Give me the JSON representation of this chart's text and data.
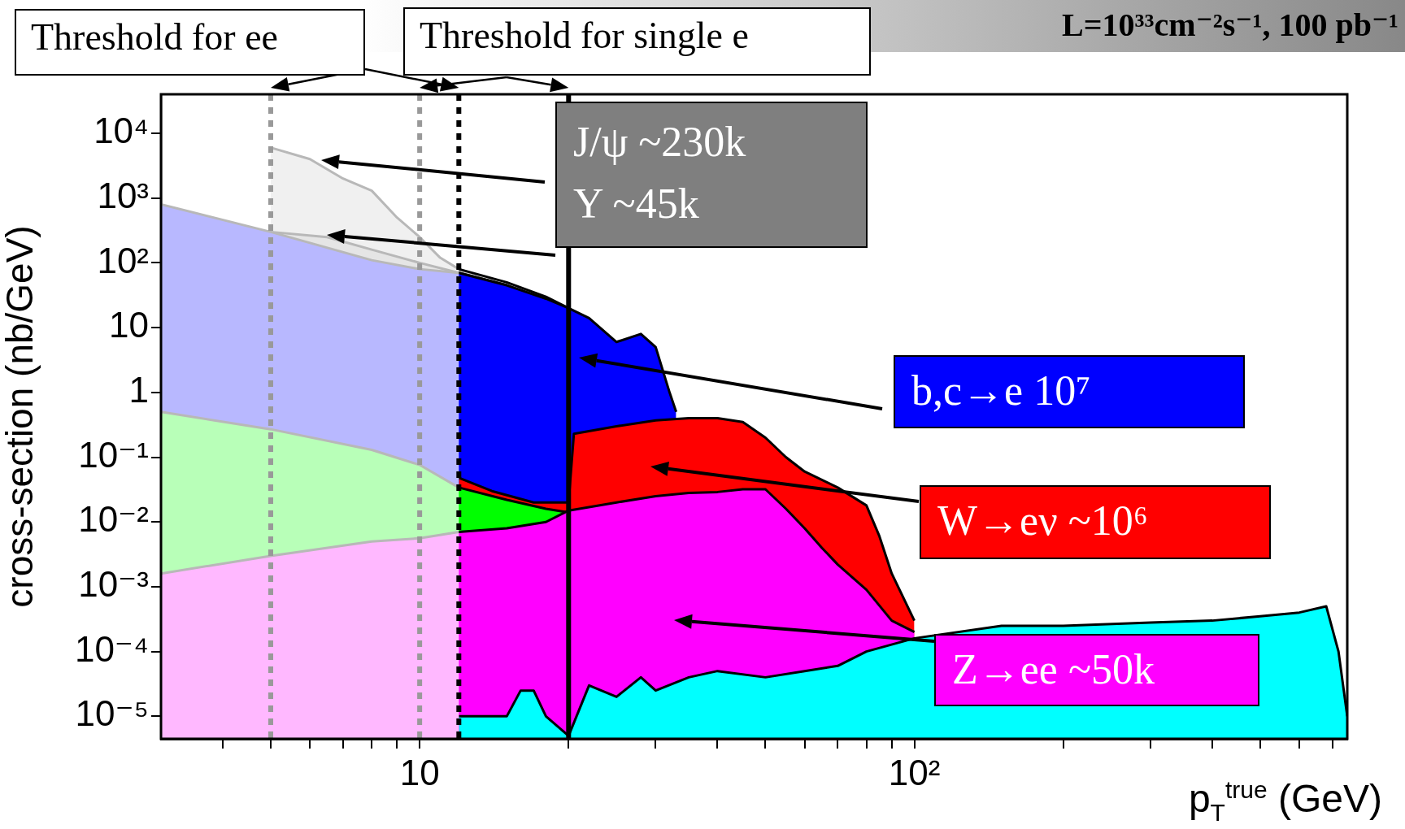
{
  "chart_data": {
    "type": "area",
    "title": "L=10³³cm⁻²s⁻¹, 100 pb⁻¹",
    "xlabel": "p$_{T}$$^{true}$ (GeV)",
    "ylabel": "cross-section (nb/GeV)",
    "log": "xy",
    "grid": false,
    "xlim": [
      3,
      750
    ],
    "ylim": [
      4.5e-06,
      40000
    ],
    "xticks": [
      {
        "value": 4,
        "label": null
      },
      {
        "value": 5,
        "label": null
      },
      {
        "value": 6,
        "label": null
      },
      {
        "value": 7,
        "label": null
      },
      {
        "value": 8,
        "label": null
      },
      {
        "value": 9,
        "label": null
      },
      {
        "value": 10,
        "label": "10"
      },
      {
        "value": 20,
        "label": null
      },
      {
        "value": 30,
        "label": null
      },
      {
        "value": 40,
        "label": null
      },
      {
        "value": 50,
        "label": null
      },
      {
        "value": 60,
        "label": null
      },
      {
        "value": 70,
        "label": null
      },
      {
        "value": 80,
        "label": null
      },
      {
        "value": 90,
        "label": null
      },
      {
        "value": 100,
        "label": "10²"
      },
      {
        "value": 200,
        "label": null
      },
      {
        "value": 300,
        "label": null
      },
      {
        "value": 400,
        "label": null
      },
      {
        "value": 500,
        "label": null
      },
      {
        "value": 600,
        "label": null
      },
      {
        "value": 700,
        "label": null
      }
    ],
    "yticks": [
      {
        "value": 1e-05,
        "label": "10⁻⁵"
      },
      {
        "value": 0.0001,
        "label": "10⁻⁴"
      },
      {
        "value": 0.001,
        "label": "10⁻³"
      },
      {
        "value": 0.01,
        "label": "10⁻²"
      },
      {
        "value": 0.1,
        "label": "10⁻¹"
      },
      1,
      10,
      {
        "value": 100,
        "label": "10²"
      },
      {
        "value": 1000,
        "label": "10³"
      },
      {
        "value": 10000,
        "label": "10⁴"
      }
    ],
    "series": [
      {
        "name": "J/ψ ~230k",
        "color": "#c8c8c8",
        "x": [
          5,
          6,
          7,
          8,
          9,
          10,
          11,
          12,
          15,
          18,
          20
        ],
        "values": [
          6000,
          4000,
          2000,
          1300,
          500,
          250,
          120,
          80,
          50,
          30,
          20
        ]
      },
      {
        "name": "Υ ~45k",
        "color": "#a0a0a0",
        "x": [
          5,
          6.5,
          8,
          10,
          12,
          15,
          20
        ],
        "values": [
          300,
          250,
          160,
          100,
          70,
          45,
          20
        ]
      },
      {
        "name": "b,c→e 10⁷",
        "color": "#0000ff",
        "x": [
          3,
          5,
          8,
          10,
          12,
          15,
          18,
          20,
          22,
          25,
          28,
          30,
          32,
          33
        ],
        "values": [
          800,
          300,
          110,
          80,
          70,
          45,
          28,
          20,
          14,
          6,
          8,
          5,
          1,
          0.5
        ]
      },
      {
        "name": "W→eν ~10⁶",
        "color": "#ff0000",
        "x": [
          12,
          14,
          17,
          20,
          20.5,
          25,
          30,
          35,
          40,
          45,
          50,
          55,
          60,
          70,
          80,
          85,
          90,
          100
        ],
        "values": [
          0.048,
          0.03,
          0.02,
          0.02,
          0.23,
          0.3,
          0.37,
          0.4,
          0.4,
          0.35,
          0.2,
          0.1,
          0.06,
          0.034,
          0.018,
          0.006,
          0.0016,
          0.0003
        ]
      },
      {
        "color": "#00ff00",
        "x": [
          3,
          5,
          8,
          10,
          12,
          15,
          18,
          20
        ],
        "values": [
          0.5,
          0.27,
          0.13,
          0.076,
          0.034,
          0.022,
          0.016,
          0.014
        ]
      },
      {
        "name": "Z→ee ~50k",
        "color": "#ff00ff",
        "x": [
          3,
          5,
          8,
          10,
          12,
          15,
          18,
          20,
          25,
          30,
          35,
          40,
          45,
          50,
          55,
          60,
          65,
          70,
          80,
          90,
          100
        ],
        "values": [
          0.0016,
          0.003,
          0.005,
          0.0056,
          0.007,
          0.008,
          0.01,
          0.015,
          0.02,
          0.025,
          0.028,
          0.029,
          0.032,
          0.032,
          0.016,
          0.008,
          0.004,
          0.0022,
          0.0009,
          0.0003,
          0.0002
        ]
      },
      {
        "color": "#00ffff",
        "x": [
          12,
          15,
          16,
          17,
          18,
          20,
          22,
          25,
          28,
          30,
          35,
          40,
          50,
          60,
          70,
          80,
          100,
          150,
          200,
          300,
          400,
          500,
          600,
          680,
          720,
          750
        ],
        "values": [
          1e-05,
          1e-05,
          2.5e-05,
          2.5e-05,
          1e-05,
          5e-06,
          3e-05,
          2e-05,
          4e-05,
          2.5e-05,
          4e-05,
          5e-05,
          4e-05,
          5e-05,
          6e-05,
          0.0001,
          0.00016,
          0.00025,
          0.00025,
          0.00028,
          0.0003,
          0.00035,
          0.0004,
          0.0005,
          0.0001,
          1e-05
        ]
      }
    ],
    "ref_lines": [
      {
        "axis": "x",
        "value": 5,
        "color": "#999999",
        "line_style": "dotted"
      },
      {
        "axis": "x",
        "value": 10,
        "color": "#999999",
        "line_style": "dotted"
      },
      {
        "axis": "x",
        "value": 12,
        "color": "#000000",
        "line_style": "dotted"
      },
      {
        "axis": "x",
        "value": 20,
        "color": "#000000",
        "line_style": "solid"
      }
    ],
    "bands": [
      {
        "axis": "x",
        "from": 3,
        "to": 12,
        "color": "#ffffff"
      }
    ],
    "annotations": [
      "Threshold for ee",
      "Threshold for single e"
    ]
  }
}
